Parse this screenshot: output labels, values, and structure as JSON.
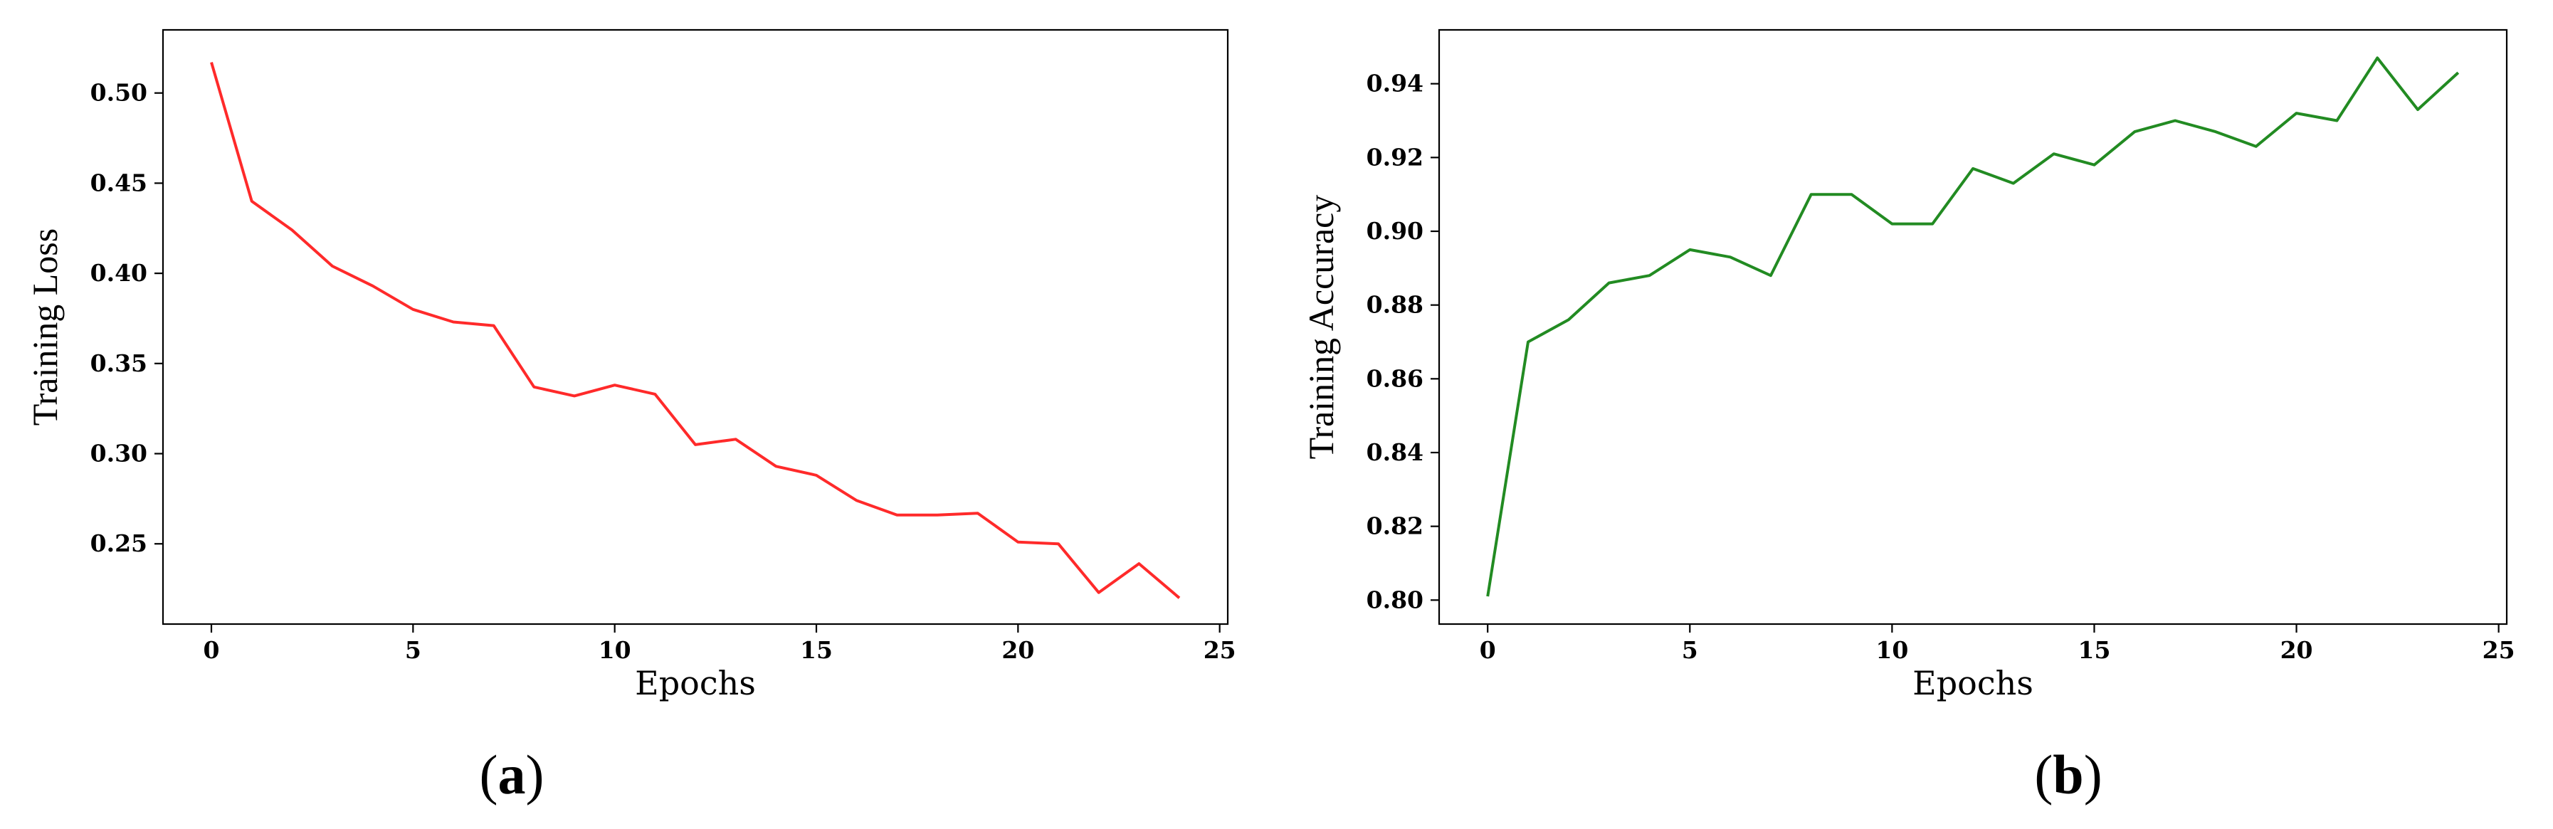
{
  "chart_data": [
    {
      "type": "line",
      "panel_label": "a",
      "xlabel": "Epochs",
      "ylabel": "Training Loss",
      "xlim": [
        -1.2,
        25.2
      ],
      "ylim": [
        0.2055,
        0.535
      ],
      "xticks": [
        0,
        5,
        10,
        15,
        20,
        25
      ],
      "xtick_labels": [
        "0",
        "5",
        "10",
        "15",
        "20",
        "25"
      ],
      "yticks": [
        0.25,
        0.3,
        0.35,
        0.4,
        0.45,
        0.5
      ],
      "ytick_labels": [
        "0.25",
        "0.30",
        "0.35",
        "0.40",
        "0.45",
        "0.50"
      ],
      "color": "#ff2a2a",
      "x": [
        0,
        1,
        2,
        3,
        4,
        5,
        6,
        7,
        8,
        9,
        10,
        11,
        12,
        13,
        14,
        15,
        16,
        17,
        18,
        19,
        20,
        21,
        22,
        23,
        24
      ],
      "values": [
        0.517,
        0.44,
        0.424,
        0.404,
        0.393,
        0.38,
        0.373,
        0.371,
        0.337,
        0.332,
        0.338,
        0.333,
        0.305,
        0.308,
        0.293,
        0.288,
        0.274,
        0.266,
        0.266,
        0.267,
        0.251,
        0.25,
        0.223,
        0.239,
        0.22
      ]
    },
    {
      "type": "line",
      "panel_label": "b",
      "xlabel": "Epochs",
      "ylabel": "Training Accuracy",
      "xlim": [
        -1.2,
        25.2
      ],
      "ylim": [
        0.7935,
        0.9546
      ],
      "xticks": [
        0,
        5,
        10,
        15,
        20,
        25
      ],
      "xtick_labels": [
        "0",
        "5",
        "10",
        "15",
        "20",
        "25"
      ],
      "yticks": [
        0.8,
        0.82,
        0.84,
        0.86,
        0.88,
        0.9,
        0.92,
        0.94
      ],
      "ytick_labels": [
        "0.80",
        "0.82",
        "0.84",
        "0.86",
        "0.88",
        "0.90",
        "0.92",
        "0.94"
      ],
      "color": "#228b22",
      "x": [
        0,
        1,
        2,
        3,
        4,
        5,
        6,
        7,
        8,
        9,
        10,
        11,
        12,
        13,
        14,
        15,
        16,
        17,
        18,
        19,
        20,
        21,
        22,
        23,
        24
      ],
      "values": [
        0.801,
        0.87,
        0.876,
        0.886,
        0.888,
        0.895,
        0.893,
        0.888,
        0.91,
        0.91,
        0.902,
        0.902,
        0.917,
        0.913,
        0.921,
        0.918,
        0.927,
        0.93,
        0.927,
        0.923,
        0.932,
        0.93,
        0.947,
        0.933,
        0.943
      ]
    }
  ]
}
